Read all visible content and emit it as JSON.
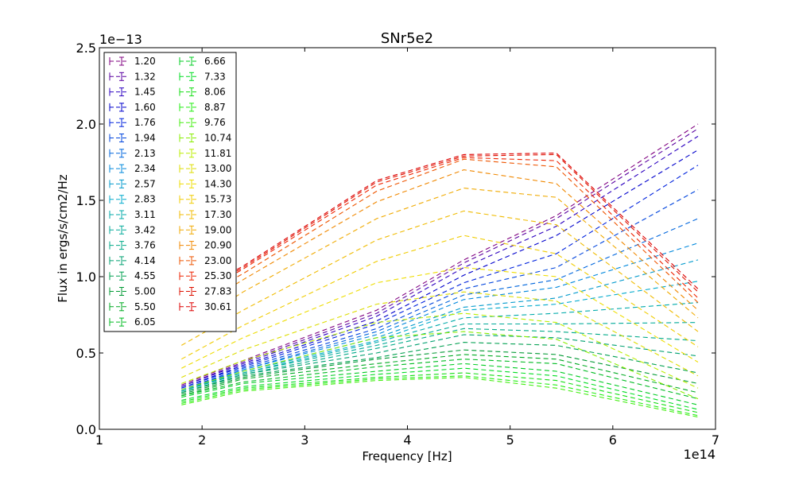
{
  "chart_data": {
    "type": "line",
    "title": "SNr5e2",
    "xlabel": "Frequency [Hz]",
    "ylabel": "Flux in ergs/s/cm2/Hz",
    "x_multiplier_label": "1e14",
    "y_multiplier_label": "1e−13",
    "xlim": [
      1,
      7
    ],
    "ylim": [
      0.0,
      2.5
    ],
    "x_ticks": [
      1,
      2,
      3,
      4,
      5,
      6,
      7
    ],
    "x_tick_labels": [
      "1",
      "2",
      "3",
      "4",
      "5",
      "6",
      "7"
    ],
    "y_ticks": [
      0.0,
      0.5,
      1.0,
      1.5,
      2.0,
      2.5
    ],
    "y_tick_labels": [
      "0.0",
      "0.5",
      "1.0",
      "1.5",
      "2.0",
      "2.5"
    ],
    "grid": false,
    "legend_position": "upper-left",
    "line_style": "dashed",
    "x": [
      1.8,
      2.4,
      3.7,
      4.55,
      5.45,
      6.83
    ],
    "series": [
      {
        "name": "1.20",
        "color": "#800080",
        "values": [
          0.29,
          0.45,
          0.78,
          1.11,
          1.4,
          2.0
        ]
      },
      {
        "name": "1.32",
        "color": "#5a00a0",
        "values": [
          0.28,
          0.44,
          0.76,
          1.09,
          1.38,
          1.97
        ]
      },
      {
        "name": "1.45",
        "color": "#2c00c0",
        "values": [
          0.28,
          0.43,
          0.74,
          1.06,
          1.33,
          1.92
        ]
      },
      {
        "name": "1.60",
        "color": "#0000cc",
        "values": [
          0.27,
          0.42,
          0.71,
          1.01,
          1.27,
          1.83
        ]
      },
      {
        "name": "1.76",
        "color": "#0022dd",
        "values": [
          0.27,
          0.41,
          0.69,
          0.96,
          1.15,
          1.73
        ]
      },
      {
        "name": "1.94",
        "color": "#0044dd",
        "values": [
          0.26,
          0.4,
          0.66,
          0.92,
          1.06,
          1.57
        ]
      },
      {
        "name": "2.13",
        "color": "#0066dd",
        "values": [
          0.26,
          0.39,
          0.64,
          0.88,
          0.98,
          1.38
        ]
      },
      {
        "name": "2.34",
        "color": "#0088dd",
        "values": [
          0.25,
          0.39,
          0.62,
          0.85,
          0.93,
          1.22
        ]
      },
      {
        "name": "2.57",
        "color": "#0099cc",
        "values": [
          0.25,
          0.38,
          0.6,
          0.8,
          0.86,
          1.11
        ]
      },
      {
        "name": "2.83",
        "color": "#00aacc",
        "values": [
          0.25,
          0.38,
          0.58,
          0.78,
          0.82,
          0.97
        ]
      },
      {
        "name": "3.11",
        "color": "#00aaaa",
        "values": [
          0.25,
          0.37,
          0.57,
          0.73,
          0.76,
          0.83
        ]
      },
      {
        "name": "3.42",
        "color": "#00aa99",
        "values": [
          0.25,
          0.37,
          0.55,
          0.69,
          0.69,
          0.7
        ]
      },
      {
        "name": "3.76",
        "color": "#00aa88",
        "values": [
          0.24,
          0.36,
          0.53,
          0.66,
          0.64,
          0.58
        ]
      },
      {
        "name": "4.14",
        "color": "#00a070",
        "values": [
          0.24,
          0.36,
          0.5,
          0.62,
          0.6,
          0.48
        ]
      },
      {
        "name": "4.55",
        "color": "#00a050",
        "values": [
          0.24,
          0.35,
          0.47,
          0.57,
          0.55,
          0.37
        ]
      },
      {
        "name": "5.00",
        "color": "#009933",
        "values": [
          0.23,
          0.34,
          0.46,
          0.52,
          0.49,
          0.3
        ]
      },
      {
        "name": "5.50",
        "color": "#00aa22",
        "values": [
          0.22,
          0.33,
          0.43,
          0.49,
          0.46,
          0.24
        ]
      },
      {
        "name": "6.05",
        "color": "#00bb22",
        "values": [
          0.22,
          0.31,
          0.41,
          0.46,
          0.43,
          0.2
        ]
      },
      {
        "name": "6.66",
        "color": "#00cc22",
        "values": [
          0.21,
          0.3,
          0.38,
          0.43,
          0.38,
          0.16
        ]
      },
      {
        "name": "7.33",
        "color": "#00dd22",
        "values": [
          0.19,
          0.28,
          0.36,
          0.4,
          0.35,
          0.13
        ]
      },
      {
        "name": "8.06",
        "color": "#11dd11",
        "values": [
          0.18,
          0.27,
          0.34,
          0.37,
          0.32,
          0.11
        ]
      },
      {
        "name": "8.87",
        "color": "#22ee11",
        "values": [
          0.17,
          0.26,
          0.33,
          0.35,
          0.29,
          0.09
        ]
      },
      {
        "name": "9.76",
        "color": "#44ee11",
        "values": [
          0.16,
          0.25,
          0.32,
          0.34,
          0.27,
          0.08
        ]
      },
      {
        "name": "10.74",
        "color": "#88ee00",
        "values": [
          0.26,
          0.38,
          0.6,
          0.64,
          0.59,
          0.2
        ]
      },
      {
        "name": "11.81",
        "color": "#bbee00",
        "values": [
          0.3,
          0.45,
          0.7,
          0.76,
          0.7,
          0.27
        ]
      },
      {
        "name": "13.00",
        "color": "#dddd00",
        "values": [
          0.34,
          0.52,
          0.82,
          0.9,
          0.84,
          0.35
        ]
      },
      {
        "name": "14.30",
        "color": "#eedd00",
        "values": [
          0.4,
          0.6,
          0.96,
          1.06,
          1.0,
          0.44
        ]
      },
      {
        "name": "15.73",
        "color": "#f0cc00",
        "values": [
          0.46,
          0.68,
          1.1,
          1.27,
          1.15,
          0.54
        ]
      },
      {
        "name": "17.30",
        "color": "#f0bb00",
        "values": [
          0.55,
          0.78,
          1.24,
          1.43,
          1.34,
          0.64
        ]
      },
      {
        "name": "19.00",
        "color": "#f0aa00",
        "values": [
          0.64,
          0.9,
          1.38,
          1.58,
          1.52,
          0.73
        ]
      },
      {
        "name": "20.90",
        "color": "#f08800",
        "values": [
          0.73,
          0.98,
          1.49,
          1.7,
          1.61,
          0.78
        ]
      },
      {
        "name": "23.00",
        "color": "#ee5500",
        "values": [
          0.8,
          1.02,
          1.56,
          1.77,
          1.72,
          0.83
        ]
      },
      {
        "name": "25.30",
        "color": "#ee2200",
        "values": [
          0.82,
          1.05,
          1.6,
          1.78,
          1.76,
          0.86
        ]
      },
      {
        "name": "27.83",
        "color": "#dd1100",
        "values": [
          0.83,
          1.06,
          1.62,
          1.79,
          1.8,
          0.9
        ]
      },
      {
        "name": "30.61",
        "color": "#dd0000",
        "values": [
          0.84,
          1.07,
          1.63,
          1.8,
          1.81,
          0.92
        ]
      }
    ]
  }
}
